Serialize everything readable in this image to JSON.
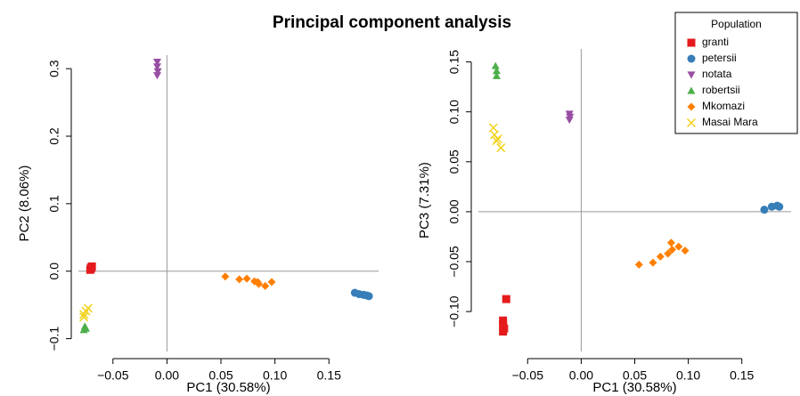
{
  "title": "Principal component analysis",
  "legend": {
    "title": "Population",
    "position": "top-right"
  },
  "chart_data": [
    {
      "type": "scatter",
      "xlabel": "PC1 (30.58%)",
      "ylabel": "PC2 (8.06%)",
      "xlim": [
        -0.082,
        0.196
      ],
      "ylim": [
        -0.119,
        0.32
      ],
      "xticks": [
        {
          "value": -0.05,
          "label": "−0.05"
        },
        {
          "value": 0,
          "label": "0.00"
        },
        {
          "value": 0.05,
          "label": "0.05"
        },
        {
          "value": 0.1,
          "label": "0.10"
        },
        {
          "value": 0.15,
          "label": "0.15"
        }
      ],
      "yticks": [
        {
          "value": -0.1,
          "label": "−0.1"
        },
        {
          "value": 0,
          "label": "0.0"
        },
        0.1,
        0.2,
        0.3
      ],
      "zero_lines": true,
      "series": [
        {
          "name": "granti",
          "color": "#e41a1c",
          "marker": "square",
          "x": [
            -0.0705,
            -0.071,
            -0.0695,
            -0.0702
          ],
          "values": [
            0.005,
            0.002,
            0.007,
            0.004
          ]
        },
        {
          "name": "petersii",
          "color": "#377eb8",
          "marker": "circle",
          "x": [
            0.174,
            0.178,
            0.182,
            0.185,
            0.187
          ],
          "values": [
            -0.032,
            -0.034,
            -0.035,
            -0.036,
            -0.037
          ]
        },
        {
          "name": "notata",
          "color": "#984ea3",
          "marker": "triangle-down",
          "x": [
            -0.009,
            -0.009,
            -0.0085,
            -0.009
          ],
          "values": [
            0.31,
            0.303,
            0.296,
            0.29
          ]
        },
        {
          "name": "robertsii",
          "color": "#4daf4a",
          "marker": "triangle-up",
          "x": [
            -0.076,
            -0.075,
            -0.077
          ],
          "values": [
            -0.082,
            -0.085,
            -0.087
          ]
        },
        {
          "name": "Mkomazi",
          "color": "#ff7f00",
          "marker": "diamond",
          "x": [
            0.054,
            0.067,
            0.074,
            0.081,
            0.085,
            0.091,
            0.097,
            0.084
          ],
          "values": [
            -0.008,
            -0.012,
            -0.011,
            -0.015,
            -0.019,
            -0.022,
            -0.016,
            -0.016
          ]
        },
        {
          "name": "Masai Mara",
          "color": "#f2d21a",
          "marker": "x",
          "x": [
            -0.077,
            -0.075,
            -0.073,
            -0.077
          ],
          "values": [
            -0.064,
            -0.059,
            -0.055,
            -0.068
          ]
        }
      ]
    },
    {
      "type": "scatter",
      "xlabel": "PC1 (30.58%)",
      "ylabel": "PC3 (7.31%)",
      "xlim": [
        -0.096,
        0.196
      ],
      "ylim": [
        -0.14,
        0.163
      ],
      "xticks": [
        {
          "value": -0.05,
          "label": "−0.05"
        },
        {
          "value": 0,
          "label": "0.00"
        },
        {
          "value": 0.05,
          "label": "0.05"
        },
        {
          "value": 0.1,
          "label": "0.10"
        },
        {
          "value": 0.15,
          "label": "0.15"
        }
      ],
      "yticks": [
        {
          "value": -0.1,
          "label": "−0.10"
        },
        {
          "value": -0.05,
          "label": "−0.05"
        },
        {
          "value": 0,
          "label": "0.00"
        },
        0.05,
        {
          "value": 0.1,
          "label": "0.10"
        },
        0.15
      ],
      "zero_lines": true,
      "series": [
        {
          "color": "#e41a1c",
          "marker": "square",
          "x": [
            -0.07,
            -0.073,
            -0.073,
            -0.072,
            -0.073
          ],
          "values": [
            -0.0875,
            -0.109,
            -0.113,
            -0.117,
            -0.12
          ]
        },
        {
          "color": "#377eb8",
          "marker": "circle",
          "x": [
            0.171,
            0.178,
            0.183,
            0.185
          ],
          "values": [
            0.002,
            0.005,
            0.006,
            0.005
          ]
        },
        {
          "color": "#984ea3",
          "marker": "triangle-down",
          "x": [
            -0.011,
            -0.011,
            -0.0105
          ],
          "values": [
            0.098,
            0.092,
            0.095
          ]
        },
        {
          "color": "#4daf4a",
          "marker": "triangle-up",
          "x": [
            -0.08,
            -0.079,
            -0.079
          ],
          "values": [
            0.146,
            0.141,
            0.136
          ]
        },
        {
          "color": "#ff7f00",
          "marker": "diamond",
          "x": [
            0.054,
            0.067,
            0.074,
            0.081,
            0.085,
            0.091,
            0.097,
            0.084
          ],
          "values": [
            -0.053,
            -0.051,
            -0.045,
            -0.042,
            -0.038,
            -0.035,
            -0.039,
            -0.031
          ]
        },
        {
          "color": "#f2d21a",
          "marker": "x",
          "x": [
            -0.082,
            -0.081,
            -0.079,
            -0.075,
            -0.078
          ],
          "values": [
            0.084,
            0.077,
            0.071,
            0.064,
            0.073
          ]
        }
      ]
    }
  ]
}
